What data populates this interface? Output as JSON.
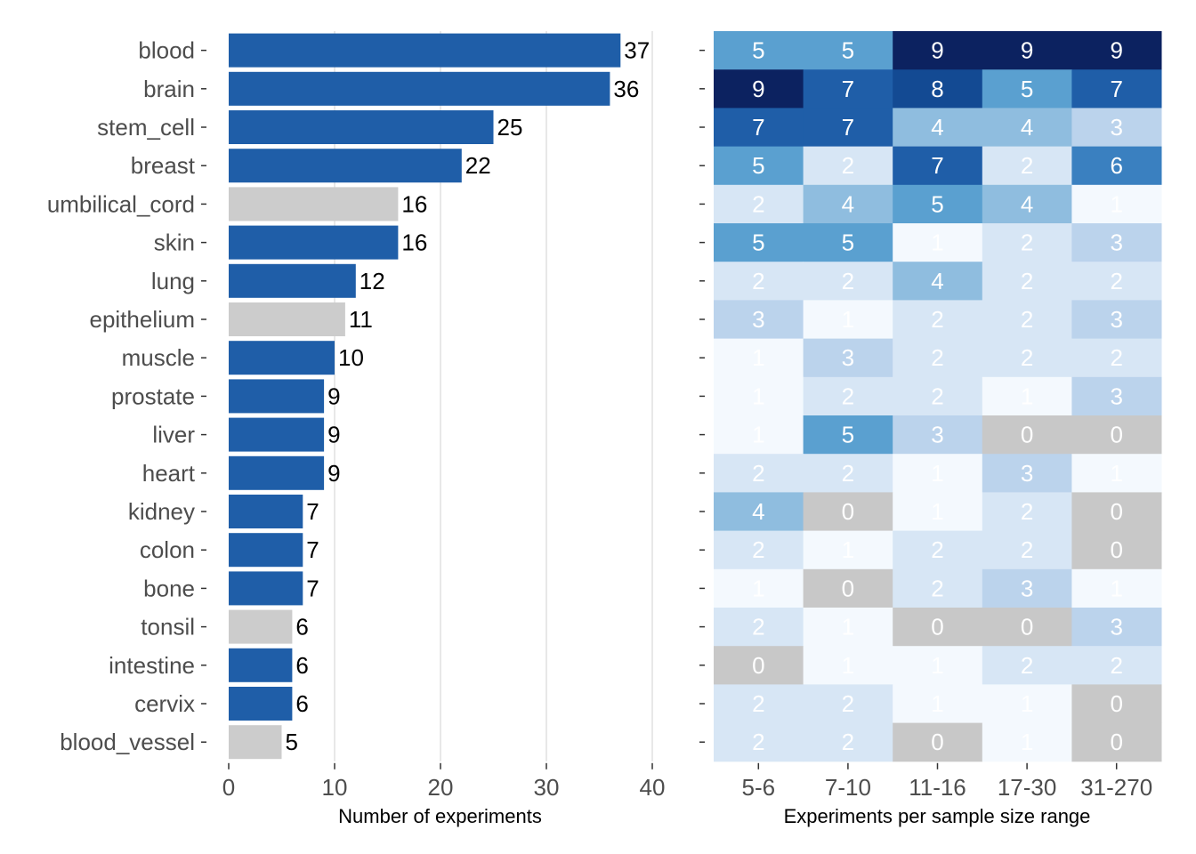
{
  "chart_data": [
    {
      "type": "bar",
      "orientation": "horizontal",
      "xlabel": "Number of experiments",
      "xlim": [
        0,
        40
      ],
      "xticks": [
        0,
        10,
        20,
        30,
        40
      ],
      "grid": "vertical gridlines",
      "categories": [
        "blood",
        "brain",
        "stem_cell",
        "breast",
        "umbilical_cord",
        "skin",
        "lung",
        "epithelium",
        "muscle",
        "prostate",
        "liver",
        "heart",
        "kidney",
        "colon",
        "bone",
        "tonsil",
        "intestine",
        "cervix",
        "blood_vessel"
      ],
      "values": [
        37,
        36,
        25,
        22,
        16,
        16,
        12,
        11,
        10,
        9,
        9,
        9,
        7,
        7,
        7,
        6,
        6,
        6,
        5
      ],
      "bar_colors": [
        "#1f5ea8",
        "#1f5ea8",
        "#1f5ea8",
        "#1f5ea8",
        "#cccccc",
        "#1f5ea8",
        "#1f5ea8",
        "#cccccc",
        "#1f5ea8",
        "#1f5ea8",
        "#1f5ea8",
        "#1f5ea8",
        "#1f5ea8",
        "#1f5ea8",
        "#1f5ea8",
        "#cccccc",
        "#1f5ea8",
        "#1f5ea8",
        "#cccccc"
      ]
    },
    {
      "type": "heatmap",
      "xlabel": "Experiments per sample size range",
      "columns": [
        "5-6",
        "7-10",
        "11-16",
        "17-30",
        "31-270"
      ],
      "rows": [
        "blood",
        "brain",
        "stem_cell",
        "breast",
        "umbilical_cord",
        "skin",
        "lung",
        "epithelium",
        "muscle",
        "prostate",
        "liver",
        "heart",
        "kidney",
        "colon",
        "bone",
        "tonsil",
        "intestine",
        "cervix",
        "blood_vessel"
      ],
      "values": [
        [
          5,
          5,
          9,
          9,
          9
        ],
        [
          9,
          7,
          8,
          5,
          7
        ],
        [
          7,
          7,
          4,
          4,
          3
        ],
        [
          5,
          2,
          7,
          2,
          6
        ],
        [
          2,
          4,
          5,
          4,
          1
        ],
        [
          5,
          5,
          1,
          2,
          3
        ],
        [
          2,
          2,
          4,
          2,
          2
        ],
        [
          3,
          1,
          2,
          2,
          3
        ],
        [
          1,
          3,
          2,
          2,
          2
        ],
        [
          1,
          2,
          2,
          1,
          3
        ],
        [
          1,
          5,
          3,
          0,
          0
        ],
        [
          2,
          2,
          1,
          3,
          1
        ],
        [
          4,
          0,
          1,
          2,
          0
        ],
        [
          2,
          1,
          2,
          2,
          0
        ],
        [
          1,
          0,
          2,
          3,
          1
        ],
        [
          2,
          1,
          0,
          0,
          3
        ],
        [
          0,
          1,
          1,
          2,
          2
        ],
        [
          2,
          2,
          1,
          1,
          0
        ],
        [
          2,
          2,
          0,
          1,
          0
        ]
      ],
      "color_scale": {
        "0": "#c8c8c8",
        "1": "#f4f9fe",
        "2": "#d7e6f5",
        "3": "#bbd3ec",
        "4": "#8fbddf",
        "5": "#5aa0d0",
        "6": "#3a80c0",
        "7": "#1f5ea8",
        "8": "#134a93",
        "9": "#0c2260"
      },
      "text_color": "#ffffff"
    }
  ]
}
